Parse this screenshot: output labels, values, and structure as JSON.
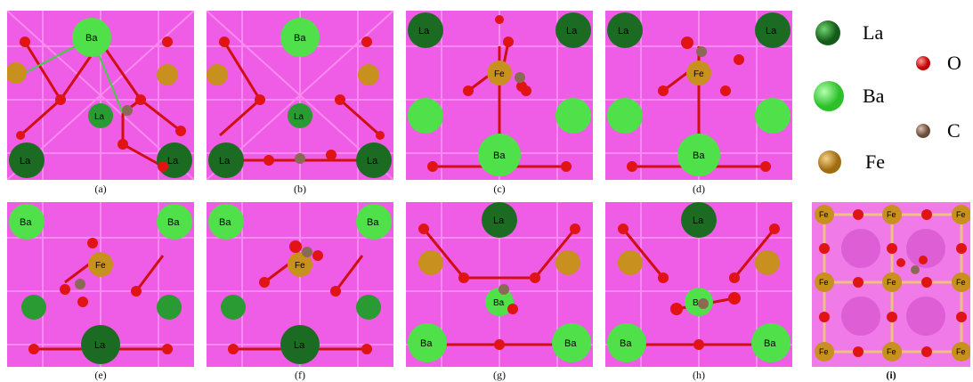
{
  "elements": {
    "La": "La",
    "Ba": "Ba",
    "Fe": "Fe",
    "O": "O",
    "C": "C"
  },
  "legend": [
    {
      "symbol": "La",
      "label": "La"
    },
    {
      "symbol": "Ba",
      "label": "Ba"
    },
    {
      "symbol": "Fe",
      "label": "Fe"
    },
    {
      "symbol": "O",
      "label": "O"
    },
    {
      "symbol": "C",
      "label": "C"
    }
  ],
  "panels": [
    {
      "caption": "(a)"
    },
    {
      "caption": "(b)"
    },
    {
      "caption": "(c)"
    },
    {
      "caption": "(d)"
    },
    {
      "caption": "(e)"
    },
    {
      "caption": "(f)"
    },
    {
      "caption": "(g)"
    },
    {
      "caption": "(h)"
    },
    {
      "caption": "(i)"
    }
  ],
  "colors": {
    "background_lattice": "#ef5ce6",
    "La": "#1c6b22",
    "Ba": "#4fe04a",
    "Fe": "#c8901e",
    "O": "#e01414",
    "C": "#8a6a55"
  }
}
